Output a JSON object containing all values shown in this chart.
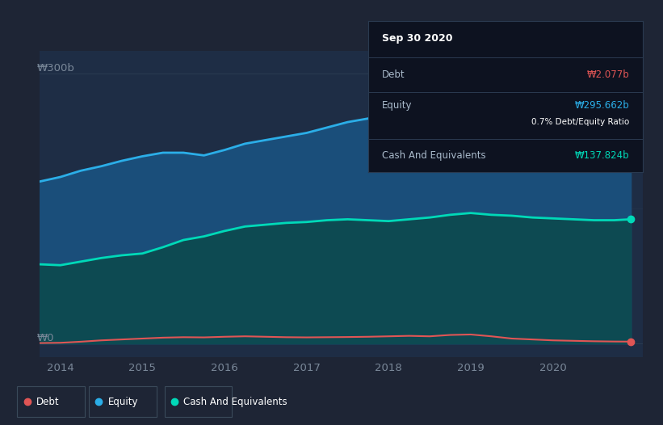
{
  "background_color": "#1e2535",
  "plot_bg_color": "#1e2d45",
  "tooltip": {
    "date": "Sep 30 2020",
    "debt_label": "Debt",
    "debt_value": "₩2.077b",
    "equity_label": "Equity",
    "equity_value": "₩295.662b",
    "ratio_value": "0.7%",
    "ratio_label": "Debt/Equity Ratio",
    "cash_label": "Cash And Equivalents",
    "cash_value": "₩137.824b"
  },
  "ylabel_top": "₩300b",
  "ylabel_bottom": "₩0",
  "x_ticks": [
    2014,
    2015,
    2016,
    2017,
    2018,
    2019,
    2020
  ],
  "x_min": 2013.75,
  "x_max": 2021.1,
  "y_min": -15,
  "y_max": 325,
  "equity_color": "#2baee8",
  "equity_fill": "#1a4e7a",
  "cash_color": "#00d9b8",
  "cash_fill": "#0d4a52",
  "debt_color": "#e05555",
  "grid_color": "#2a3a50",
  "tick_color": "#7a8899",
  "legend_bg": "#1e2535",
  "legend_edge": "#3a4a5a",
  "tooltip_bg": "#0d1220",
  "tooltip_edge": "#2a3a50",
  "tooltip_text": "#aabbcc",
  "equity_data_x": [
    2013.75,
    2014.0,
    2014.25,
    2014.5,
    2014.75,
    2015.0,
    2015.25,
    2015.5,
    2015.75,
    2016.0,
    2016.25,
    2016.5,
    2016.75,
    2017.0,
    2017.25,
    2017.5,
    2017.75,
    2018.0,
    2018.25,
    2018.5,
    2018.75,
    2019.0,
    2019.25,
    2019.5,
    2019.75,
    2020.0,
    2020.25,
    2020.5,
    2020.75,
    2020.95
  ],
  "equity_data_y": [
    180,
    185,
    192,
    197,
    203,
    208,
    212,
    212,
    209,
    215,
    222,
    226,
    230,
    234,
    240,
    246,
    250,
    256,
    261,
    265,
    270,
    272,
    275,
    277,
    279,
    280,
    285,
    289,
    293,
    296
  ],
  "cash_data_x": [
    2013.75,
    2014.0,
    2014.25,
    2014.5,
    2014.75,
    2015.0,
    2015.25,
    2015.5,
    2015.75,
    2016.0,
    2016.25,
    2016.5,
    2016.75,
    2017.0,
    2017.25,
    2017.5,
    2017.75,
    2018.0,
    2018.25,
    2018.5,
    2018.75,
    2019.0,
    2019.25,
    2019.5,
    2019.75,
    2020.0,
    2020.25,
    2020.5,
    2020.75,
    2020.95
  ],
  "cash_data_y": [
    88,
    87,
    91,
    95,
    98,
    100,
    107,
    115,
    119,
    125,
    130,
    132,
    134,
    135,
    137,
    138,
    137,
    136,
    138,
    140,
    143,
    145,
    143,
    142,
    140,
    139,
    138,
    137,
    137,
    138
  ],
  "debt_data_x": [
    2013.75,
    2014.0,
    2014.25,
    2014.5,
    2014.75,
    2015.0,
    2015.25,
    2015.5,
    2015.75,
    2016.0,
    2016.25,
    2016.5,
    2016.75,
    2017.0,
    2017.25,
    2017.5,
    2017.75,
    2018.0,
    2018.25,
    2018.5,
    2018.75,
    2019.0,
    2019.25,
    2019.5,
    2019.75,
    2020.0,
    2020.25,
    2020.5,
    2020.75,
    2020.95
  ],
  "debt_data_y": [
    0.5,
    0.8,
    2.0,
    3.5,
    4.5,
    5.5,
    6.5,
    7.0,
    6.8,
    7.5,
    8.0,
    7.5,
    7.0,
    6.8,
    7.0,
    7.2,
    7.5,
    8.0,
    8.5,
    8.0,
    9.5,
    10.0,
    8.0,
    5.5,
    4.5,
    3.5,
    3.0,
    2.5,
    2.2,
    2.1
  ],
  "legend_labels": [
    "Debt",
    "Equity",
    "Cash And Equivalents"
  ],
  "legend_colors": [
    "#e05555",
    "#2baee8",
    "#00d9b8"
  ]
}
